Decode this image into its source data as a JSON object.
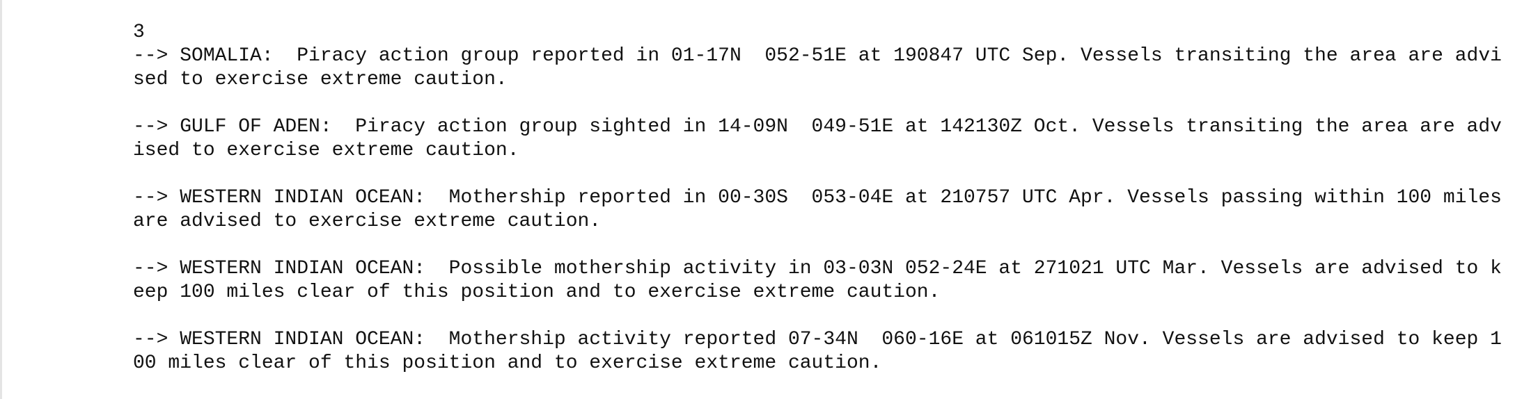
{
  "page_number": "3",
  "entries": [
    "--> SOMALIA:  Piracy action group reported in 01-17N  052-51E at 190847 UTC Sep. Vessels transiting the area are advised to exercise extreme caution.",
    "--> GULF OF ADEN:  Piracy action group sighted in 14-09N  049-51E at 142130Z Oct. Vessels transiting the area are advised to exercise extreme caution.",
    "--> WESTERN INDIAN OCEAN:  Mothership reported in 00-30S  053-04E at 210757 UTC Apr. Vessels passing within 100 miles are advised to exercise extreme caution.",
    "--> WESTERN INDIAN OCEAN:  Possible mothership activity in 03-03N 052-24E at 271021 UTC Mar. Vessels are advised to keep 100 miles clear of this position and to exercise extreme caution.",
    "--> WESTERN INDIAN OCEAN:  Mothership activity reported 07-34N  060-16E at 061015Z Nov. Vessels are advised to keep 100 miles clear of this position and to exercise extreme caution."
  ]
}
